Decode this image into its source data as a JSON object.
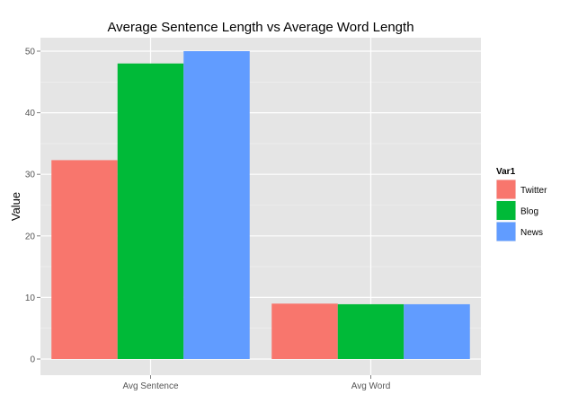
{
  "chart_data": {
    "type": "bar",
    "title": "Average Sentence Length vs Average Word Length",
    "xlabel": "",
    "ylabel": "Value",
    "categories": [
      "Avg Sentence",
      "Avg Word"
    ],
    "series": [
      {
        "name": "Twitter",
        "values": [
          32.3,
          9.0
        ],
        "color": "#F8766D"
      },
      {
        "name": "Blog",
        "values": [
          48.0,
          8.9
        ],
        "color": "#00BA38"
      },
      {
        "name": "News",
        "values": [
          50.0,
          8.9
        ],
        "color": "#619CFF"
      }
    ],
    "ylim": [
      0,
      52.5
    ],
    "yticks": [
      0,
      10,
      20,
      30,
      40,
      50
    ],
    "ytick_labels": [
      "0",
      "10",
      "20",
      "30",
      "40",
      "50"
    ],
    "grid": true,
    "legend": {
      "title": "Var1",
      "placement": "right"
    },
    "panel_color": "#E5E5E5"
  }
}
